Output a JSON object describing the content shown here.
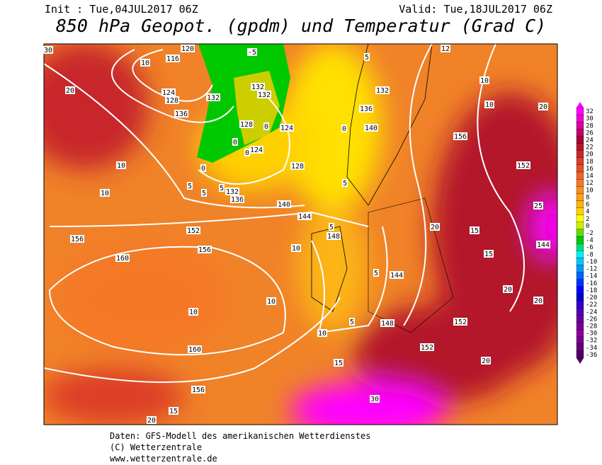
{
  "header": {
    "init": "Init : Tue,04JUL2017 06Z",
    "valid": "Valid: Tue,18JUL2017 06Z",
    "title": "850 hPa Geopot. (gpdm) und Temperatur (Grad C)"
  },
  "colorbar": {
    "labels": [
      "32",
      "30",
      "28",
      "26",
      "24",
      "22",
      "20",
      "18",
      "16",
      "14",
      "12",
      "10",
      "8",
      "6",
      "4",
      "2",
      "0",
      "-2",
      "-4",
      "-6",
      "-8",
      "-10",
      "-12",
      "-14",
      "-16",
      "-18",
      "-20",
      "-22",
      "-24",
      "-26",
      "-28",
      "-30",
      "-32",
      "-34",
      "-36"
    ],
    "colors": [
      "#ff00ff",
      "#f000d0",
      "#d8009c",
      "#c0006c",
      "#a80038",
      "#b41428",
      "#c82828",
      "#dc3c28",
      "#e65028",
      "#f06428",
      "#f57828",
      "#fa8c1e",
      "#fca014",
      "#ffb40a",
      "#ffd000",
      "#ffff00",
      "#c8f000",
      "#64dc00",
      "#00c800",
      "#00dc78",
      "#00f0f0",
      "#00c8ff",
      "#0096ff",
      "#0064ff",
      "#0032ff",
      "#0000ff",
      "#0000c8",
      "#3200c8",
      "#5000b4",
      "#6400a0",
      "#780096",
      "#8c0096",
      "#78008c",
      "#640078",
      "#500064"
    ]
  },
  "map": {
    "contour_labels": [
      "120",
      "116",
      "10",
      "124",
      "128",
      "132",
      "136",
      "-5",
      "132",
      "132",
      "128",
      "124",
      "124",
      "0",
      "0",
      "0",
      "0",
      "5",
      "5",
      "5",
      "132",
      "136",
      "140",
      "128",
      "144",
      "5",
      "148",
      "10",
      "0",
      "5",
      "12",
      "132",
      "136",
      "140",
      "5",
      "10",
      "10",
      "156",
      "20",
      "152",
      "25",
      "20",
      "15",
      "144",
      "15",
      "20",
      "20",
      "5",
      "144",
      "148",
      "152",
      "152",
      "20",
      "20",
      "10",
      "10",
      "156",
      "152",
      "156",
      "160",
      "10",
      "10",
      "160",
      "5",
      "10",
      "15",
      "156",
      "15",
      "20",
      "30",
      "30"
    ]
  },
  "footer": {
    "lines": [
      "Daten: GFS-Modell des amerikanischen Wetterdienstes",
      "(C) Wetterzentrale",
      "www.wetterzentrale.de"
    ]
  }
}
